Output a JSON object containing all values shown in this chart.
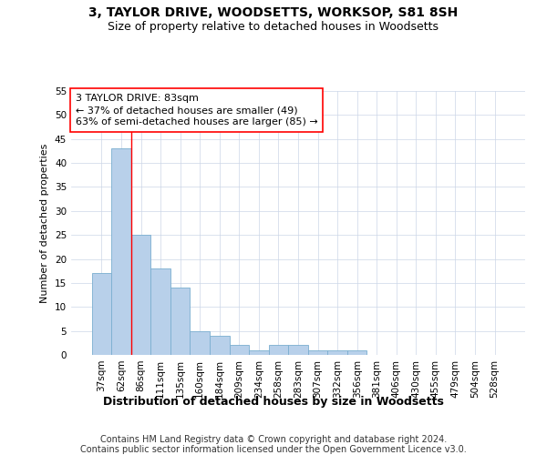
{
  "title": "3, TAYLOR DRIVE, WOODSETTS, WORKSOP, S81 8SH",
  "subtitle": "Size of property relative to detached houses in Woodsetts",
  "xlabel": "Distribution of detached houses by size in Woodsetts",
  "ylabel": "Number of detached properties",
  "footer_line1": "Contains HM Land Registry data © Crown copyright and database right 2024.",
  "footer_line2": "Contains public sector information licensed under the Open Government Licence v3.0.",
  "categories": [
    "37sqm",
    "62sqm",
    "86sqm",
    "111sqm",
    "135sqm",
    "160sqm",
    "184sqm",
    "209sqm",
    "234sqm",
    "258sqm",
    "283sqm",
    "307sqm",
    "332sqm",
    "356sqm",
    "381sqm",
    "406sqm",
    "430sqm",
    "455sqm",
    "479sqm",
    "504sqm",
    "528sqm"
  ],
  "values": [
    17,
    43,
    25,
    18,
    14,
    5,
    4,
    2,
    1,
    2,
    2,
    1,
    1,
    1,
    0,
    0,
    0,
    0,
    0,
    0,
    0
  ],
  "bar_color": "#b8d0ea",
  "bar_edge_color": "#7aaed0",
  "ylim": [
    0,
    55
  ],
  "yticks": [
    0,
    5,
    10,
    15,
    20,
    25,
    30,
    35,
    40,
    45,
    50,
    55
  ],
  "annotation_line1": "3 TAYLOR DRIVE: 83sqm",
  "annotation_line2": "← 37% of detached houses are smaller (49)",
  "annotation_line3": "63% of semi-detached houses are larger (85) →",
  "property_line_x": 1.5,
  "bg_color": "#ffffff",
  "grid_color": "#ccd6e8",
  "title_fontsize": 10,
  "subtitle_fontsize": 9,
  "ylabel_fontsize": 8,
  "xlabel_fontsize": 9,
  "tick_fontsize": 7.5,
  "annotation_fontsize": 8,
  "footer_fontsize": 7
}
